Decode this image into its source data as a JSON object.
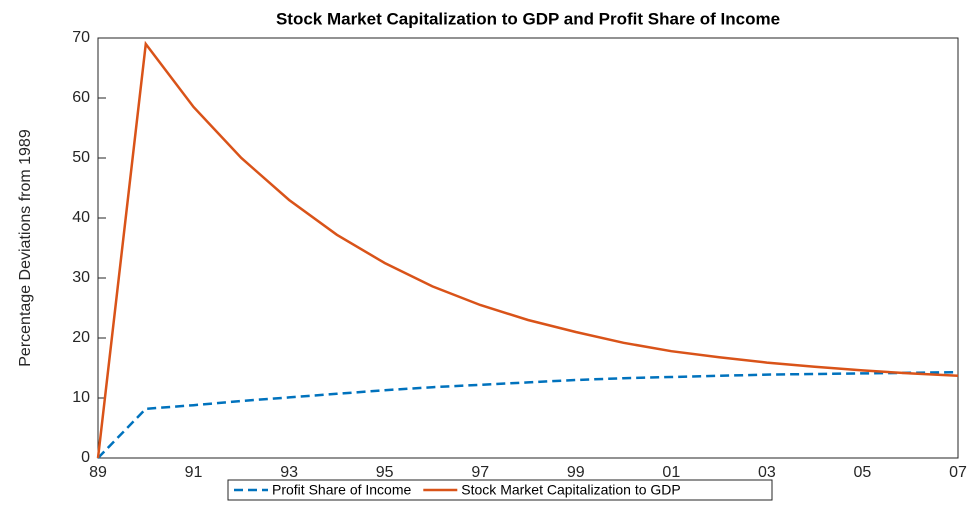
{
  "chart_data": {
    "type": "line",
    "title": "Stock Market Capitalization to GDP and Profit Share of Income",
    "y_label": "Percentage Deviations from 1989",
    "categories": [
      "89",
      null,
      "91",
      null,
      "93",
      null,
      "95",
      null,
      "97",
      null,
      "99",
      null,
      "01",
      null,
      "03",
      null,
      "05",
      null,
      "07"
    ],
    "series": [
      {
        "name": "Profit Share of Income",
        "color": "#0072BD",
        "dashed": true,
        "values": [
          0,
          8.2,
          8.8,
          9.5,
          10.1,
          10.7,
          11.3,
          11.8,
          12.2,
          12.6,
          13.0,
          13.3,
          13.5,
          13.7,
          13.9,
          14.0,
          14.1,
          14.2,
          14.3
        ]
      },
      {
        "name": "Stock Market Capitalization to GDP",
        "color": "#D95319",
        "dashed": false,
        "values": [
          0,
          69,
          58.5,
          50,
          43,
          37.2,
          32.5,
          28.6,
          25.5,
          23,
          21,
          19.2,
          17.8,
          16.8,
          15.9,
          15.2,
          14.6,
          14.1,
          13.7
        ]
      }
    ],
    "ylim": [
      0,
      70
    ],
    "yticks": [
      0,
      10,
      20,
      30,
      40,
      50,
      60,
      70
    ],
    "grid": false,
    "legend": "bottom"
  }
}
